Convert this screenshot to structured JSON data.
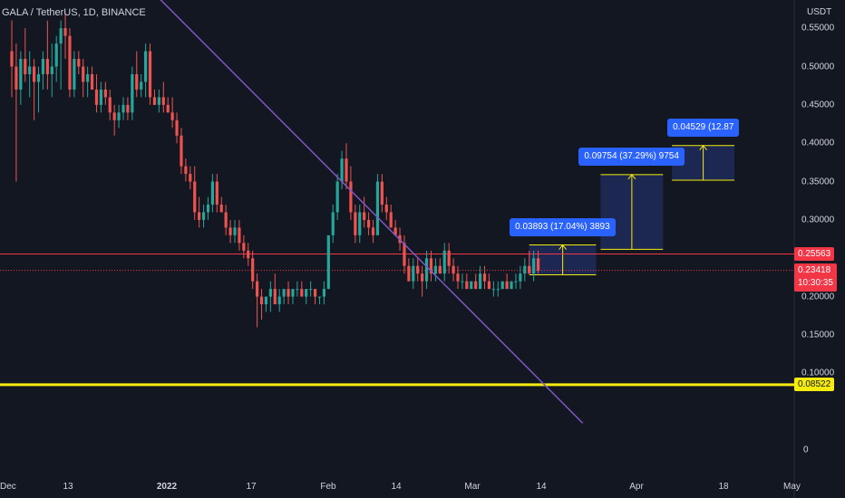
{
  "symbol_title": "GALA / TetherUS, 1D, BINANCE",
  "axis_unit": "USDT",
  "colors": {
    "background": "#131722",
    "up": "#26a69a",
    "down": "#ef5350",
    "trendline": "#7e57c2",
    "resistance": "#f23645",
    "support": "#f5eb0f",
    "measure_fill": "#1e2a5a",
    "measure_line": "#f5eb0f",
    "label_bg": "#2962ff"
  },
  "chart_data": {
    "type": "candlestick",
    "title": "GALA / TetherUS, 1D, BINANCE",
    "ylabel": "USDT",
    "ylim": [
      0,
      0.56
    ],
    "y_ticks": [
      "0.55000",
      "0.50000",
      "0.45000",
      "0.40000",
      "0.35000",
      "0.30000",
      "0.25000",
      "0.20000",
      "0.15000",
      "0.10000",
      "0"
    ],
    "x_ticks": [
      "Dec",
      "13",
      "2022",
      "17",
      "Feb",
      "14",
      "Mar",
      "14",
      "Apr",
      "18",
      "May"
    ],
    "ohlc": [
      [
        0.52,
        0.56,
        0.46,
        0.5
      ],
      [
        0.5,
        0.53,
        0.35,
        0.47
      ],
      [
        0.47,
        0.52,
        0.45,
        0.51
      ],
      [
        0.51,
        0.55,
        0.48,
        0.49
      ],
      [
        0.49,
        0.52,
        0.46,
        0.5
      ],
      [
        0.5,
        0.51,
        0.43,
        0.48
      ],
      [
        0.48,
        0.5,
        0.44,
        0.49
      ],
      [
        0.49,
        0.52,
        0.47,
        0.51
      ],
      [
        0.51,
        0.56,
        0.47,
        0.49
      ],
      [
        0.49,
        0.53,
        0.46,
        0.5
      ],
      [
        0.5,
        0.54,
        0.48,
        0.53
      ],
      [
        0.53,
        0.56,
        0.47,
        0.55
      ],
      [
        0.55,
        0.57,
        0.51,
        0.54
      ],
      [
        0.54,
        0.55,
        0.46,
        0.47
      ],
      [
        0.47,
        0.52,
        0.46,
        0.51
      ],
      [
        0.51,
        0.52,
        0.49,
        0.5
      ],
      [
        0.5,
        0.51,
        0.46,
        0.48
      ],
      [
        0.48,
        0.5,
        0.46,
        0.49
      ],
      [
        0.49,
        0.5,
        0.47,
        0.47
      ],
      [
        0.47,
        0.49,
        0.44,
        0.45
      ],
      [
        0.45,
        0.48,
        0.44,
        0.47
      ],
      [
        0.47,
        0.48,
        0.45,
        0.46
      ],
      [
        0.46,
        0.47,
        0.43,
        0.44
      ],
      [
        0.44,
        0.45,
        0.41,
        0.43
      ],
      [
        0.43,
        0.45,
        0.42,
        0.44
      ],
      [
        0.44,
        0.46,
        0.43,
        0.45
      ],
      [
        0.45,
        0.46,
        0.43,
        0.44
      ],
      [
        0.44,
        0.5,
        0.43,
        0.49
      ],
      [
        0.49,
        0.52,
        0.46,
        0.47
      ],
      [
        0.47,
        0.49,
        0.46,
        0.48
      ],
      [
        0.48,
        0.53,
        0.46,
        0.52
      ],
      [
        0.52,
        0.53,
        0.45,
        0.46
      ],
      [
        0.46,
        0.47,
        0.45,
        0.45
      ],
      [
        0.45,
        0.47,
        0.44,
        0.46
      ],
      [
        0.46,
        0.48,
        0.44,
        0.45
      ],
      [
        0.45,
        0.46,
        0.44,
        0.44
      ],
      [
        0.44,
        0.46,
        0.42,
        0.43
      ],
      [
        0.43,
        0.44,
        0.4,
        0.41
      ],
      [
        0.41,
        0.42,
        0.36,
        0.37
      ],
      [
        0.37,
        0.38,
        0.35,
        0.36
      ],
      [
        0.36,
        0.37,
        0.34,
        0.35
      ],
      [
        0.35,
        0.37,
        0.3,
        0.31
      ],
      [
        0.31,
        0.33,
        0.29,
        0.3
      ],
      [
        0.3,
        0.32,
        0.29,
        0.31
      ],
      [
        0.31,
        0.33,
        0.3,
        0.32
      ],
      [
        0.32,
        0.36,
        0.31,
        0.35
      ],
      [
        0.35,
        0.36,
        0.31,
        0.32
      ],
      [
        0.32,
        0.33,
        0.31,
        0.31
      ],
      [
        0.31,
        0.32,
        0.28,
        0.29
      ],
      [
        0.29,
        0.3,
        0.27,
        0.28
      ],
      [
        0.28,
        0.3,
        0.27,
        0.29
      ],
      [
        0.29,
        0.3,
        0.26,
        0.27
      ],
      [
        0.27,
        0.28,
        0.25,
        0.26
      ],
      [
        0.26,
        0.27,
        0.24,
        0.25
      ],
      [
        0.25,
        0.26,
        0.21,
        0.22
      ],
      [
        0.22,
        0.23,
        0.16,
        0.2
      ],
      [
        0.2,
        0.21,
        0.17,
        0.19
      ],
      [
        0.19,
        0.2,
        0.18,
        0.2
      ],
      [
        0.2,
        0.22,
        0.18,
        0.21
      ],
      [
        0.21,
        0.23,
        0.19,
        0.19
      ],
      [
        0.19,
        0.21,
        0.18,
        0.2
      ],
      [
        0.2,
        0.21,
        0.19,
        0.21
      ],
      [
        0.21,
        0.22,
        0.19,
        0.2
      ],
      [
        0.2,
        0.21,
        0.19,
        0.21
      ],
      [
        0.21,
        0.22,
        0.2,
        0.21
      ],
      [
        0.21,
        0.22,
        0.2,
        0.2
      ],
      [
        0.2,
        0.21,
        0.19,
        0.21
      ],
      [
        0.21,
        0.22,
        0.2,
        0.21
      ],
      [
        0.21,
        0.21,
        0.19,
        0.2
      ],
      [
        0.2,
        0.2,
        0.19,
        0.2
      ],
      [
        0.2,
        0.22,
        0.19,
        0.21
      ],
      [
        0.21,
        0.28,
        0.21,
        0.28
      ],
      [
        0.28,
        0.32,
        0.27,
        0.31
      ],
      [
        0.31,
        0.36,
        0.3,
        0.35
      ],
      [
        0.35,
        0.39,
        0.34,
        0.38
      ],
      [
        0.38,
        0.4,
        0.34,
        0.35
      ],
      [
        0.35,
        0.37,
        0.3,
        0.31
      ],
      [
        0.31,
        0.32,
        0.27,
        0.28
      ],
      [
        0.28,
        0.32,
        0.27,
        0.31
      ],
      [
        0.31,
        0.33,
        0.29,
        0.3
      ],
      [
        0.3,
        0.31,
        0.28,
        0.29
      ],
      [
        0.29,
        0.3,
        0.27,
        0.28
      ],
      [
        0.28,
        0.36,
        0.28,
        0.35
      ],
      [
        0.35,
        0.36,
        0.31,
        0.32
      ],
      [
        0.32,
        0.33,
        0.3,
        0.31
      ],
      [
        0.31,
        0.32,
        0.29,
        0.29
      ],
      [
        0.29,
        0.3,
        0.28,
        0.28
      ],
      [
        0.28,
        0.29,
        0.26,
        0.27
      ],
      [
        0.27,
        0.28,
        0.23,
        0.24
      ],
      [
        0.24,
        0.25,
        0.22,
        0.22
      ],
      [
        0.22,
        0.25,
        0.21,
        0.24
      ],
      [
        0.24,
        0.25,
        0.22,
        0.23
      ],
      [
        0.23,
        0.24,
        0.2,
        0.22
      ],
      [
        0.22,
        0.26,
        0.21,
        0.25
      ],
      [
        0.25,
        0.26,
        0.22,
        0.23
      ],
      [
        0.23,
        0.25,
        0.22,
        0.24
      ],
      [
        0.24,
        0.25,
        0.23,
        0.23
      ],
      [
        0.23,
        0.27,
        0.22,
        0.26
      ],
      [
        0.26,
        0.27,
        0.23,
        0.24
      ],
      [
        0.24,
        0.25,
        0.22,
        0.23
      ],
      [
        0.23,
        0.24,
        0.21,
        0.22
      ],
      [
        0.22,
        0.23,
        0.21,
        0.22
      ],
      [
        0.22,
        0.23,
        0.21,
        0.21
      ],
      [
        0.21,
        0.22,
        0.21,
        0.22
      ],
      [
        0.22,
        0.23,
        0.21,
        0.21
      ],
      [
        0.21,
        0.24,
        0.21,
        0.23
      ],
      [
        0.23,
        0.24,
        0.21,
        0.22
      ],
      [
        0.22,
        0.23,
        0.21,
        0.21
      ],
      [
        0.21,
        0.22,
        0.2,
        0.21
      ],
      [
        0.21,
        0.22,
        0.2,
        0.21
      ],
      [
        0.21,
        0.22,
        0.21,
        0.22
      ],
      [
        0.22,
        0.23,
        0.21,
        0.21
      ],
      [
        0.21,
        0.22,
        0.21,
        0.22
      ],
      [
        0.22,
        0.23,
        0.21,
        0.22
      ],
      [
        0.22,
        0.24,
        0.21,
        0.23
      ],
      [
        0.23,
        0.25,
        0.22,
        0.24
      ],
      [
        0.24,
        0.26,
        0.23,
        0.23
      ],
      [
        0.23,
        0.26,
        0.22,
        0.25
      ],
      [
        0.25,
        0.26,
        0.23,
        0.234
      ]
    ],
    "trendline": {
      "from": {
        "candle": 26,
        "price": 0.63
      },
      "to": {
        "candle": 128,
        "price": 0.035
      }
    },
    "horizontal_lines": [
      {
        "price": 0.25563,
        "label": "0.25563",
        "style": "solid"
      },
      {
        "price": 0.08522,
        "label": "0.08522",
        "style": "thick"
      },
      {
        "price": 0.23418,
        "label": "0.23418",
        "style": "dotted"
      }
    ],
    "last_price": "0.23418",
    "countdown": "10:30:35",
    "measurements": [
      {
        "label": "0.03893 (17.04%) 3893",
        "start_candle": 116,
        "end_candle": 131,
        "from": 0.2285,
        "to": 0.2674
      },
      {
        "label": "0.09754 (37.29%) 9754",
        "start_candle": 132,
        "end_candle": 146,
        "from": 0.2616,
        "to": 0.3591
      },
      {
        "label": "0.04529 (12.87",
        "start_candle": 148,
        "end_candle": 162,
        "from": 0.3518,
        "to": 0.397
      }
    ]
  }
}
